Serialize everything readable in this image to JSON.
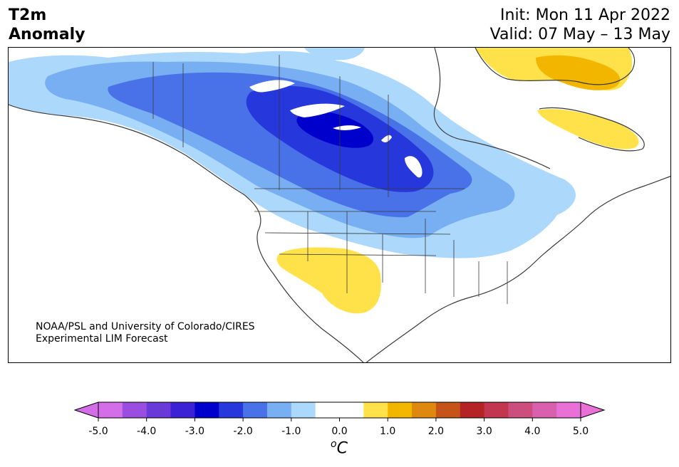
{
  "title": {
    "line1": "T2m",
    "line2": "Anomaly"
  },
  "dates": {
    "init": "Init: Mon 11 Apr 2022",
    "valid": "Valid: 07 May – 13 May"
  },
  "credit": {
    "line1": "NOAA/PSL and University of Colorado/CIRES",
    "line2": "Experimental LIM Forecast"
  },
  "colorbar": {
    "unit_main": "C",
    "unit_sup": "o",
    "tick_labels": [
      "-5.0",
      "-4.0",
      "-3.0",
      "-2.0",
      "-1.0",
      "0.0",
      "1.0",
      "2.0",
      "3.0",
      "4.0",
      "5.0"
    ],
    "colors": [
      "#d46ee8",
      "#9a4ee0",
      "#6a3ad8",
      "#3c22d4",
      "#0000cd",
      "#2638dc",
      "#4a72e8",
      "#78aef2",
      "#acd8fc",
      "#ffffff",
      "#ffffff",
      "#ffe24a",
      "#f2b600",
      "#de8810",
      "#c65418",
      "#b42424",
      "#c23650",
      "#cc4e7c",
      "#d860ac",
      "#e870d6"
    ],
    "over_color": "#e870d6",
    "under_color": "#d46ee8"
  },
  "colors": {
    "cold_1": "#acd8fc",
    "cold_2": "#78aef2",
    "cold_3": "#4a72e8",
    "cold_4": "#2638dc",
    "cold_5": "#0000cd",
    "warm_1": "#ffe24a",
    "warm_2": "#f2b600",
    "coast": "#3a3a3a"
  }
}
